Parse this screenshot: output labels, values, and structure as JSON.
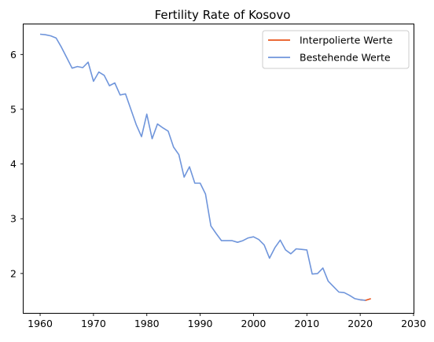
{
  "chart_data": {
    "type": "line",
    "title": "Fertility Rate of Kosovo",
    "xlabel": "",
    "ylabel": "",
    "xlim": [
      1956.9,
      2030
    ],
    "ylim": [
      1.28,
      6.55
    ],
    "xticks": [
      1960,
      1970,
      1980,
      1990,
      2000,
      2010,
      2020,
      2030
    ],
    "yticks": [
      2,
      3,
      4,
      5,
      6
    ],
    "grid": false,
    "legend_position": "top-right",
    "series": [
      {
        "name": "Interpolierte Werte",
        "color": "#e8541c",
        "x": [
          2020,
          2021,
          2022
        ],
        "y": [
          1.52,
          1.51,
          1.54
        ]
      },
      {
        "name": "Bestehende Werte",
        "color": "#6f95db",
        "x": [
          1960,
          1961,
          1962,
          1963,
          1964,
          1965,
          1966,
          1967,
          1968,
          1969,
          1970,
          1971,
          1972,
          1973,
          1974,
          1975,
          1976,
          1977,
          1978,
          1979,
          1980,
          1981,
          1982,
          1983,
          1984,
          1985,
          1986,
          1987,
          1988,
          1989,
          1990,
          1991,
          1992,
          1993,
          1994,
          1995,
          1996,
          1997,
          1998,
          1999,
          2000,
          2001,
          2002,
          2003,
          2004,
          2005,
          2006,
          2007,
          2008,
          2009,
          2010,
          2011,
          2012,
          2013,
          2014,
          2015,
          2016,
          2017,
          2018,
          2019,
          2020,
          2021
        ],
        "y": [
          6.37,
          6.36,
          6.34,
          6.3,
          6.13,
          5.94,
          5.75,
          5.78,
          5.76,
          5.86,
          5.51,
          5.68,
          5.62,
          5.43,
          5.48,
          5.26,
          5.28,
          5.0,
          4.72,
          4.5,
          4.91,
          4.46,
          4.73,
          4.66,
          4.6,
          4.31,
          4.17,
          3.76,
          3.95,
          3.65,
          3.65,
          3.45,
          2.87,
          2.73,
          2.6,
          2.6,
          2.6,
          2.57,
          2.6,
          2.65,
          2.67,
          2.62,
          2.52,
          2.28,
          2.47,
          2.61,
          2.43,
          2.36,
          2.45,
          2.44,
          2.43,
          1.99,
          2.0,
          2.1,
          1.86,
          1.76,
          1.66,
          1.65,
          1.6,
          1.54,
          1.52,
          1.51
        ]
      }
    ]
  }
}
